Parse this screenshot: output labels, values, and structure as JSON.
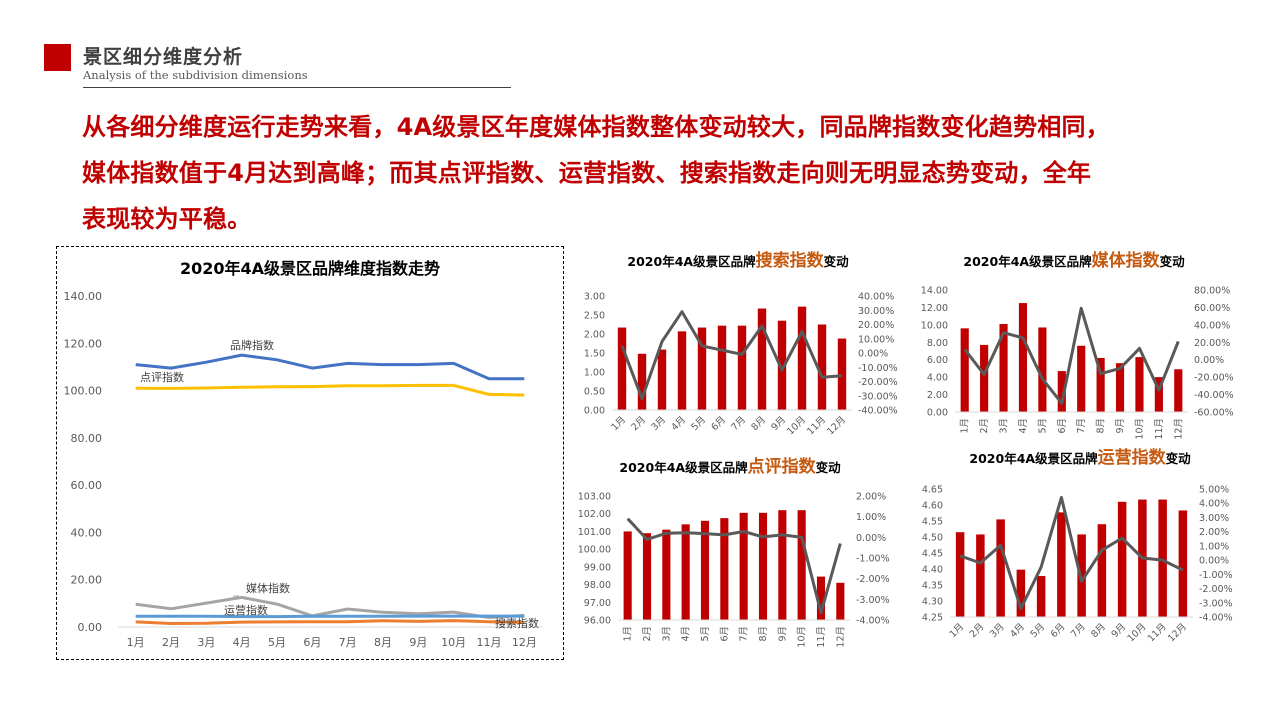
{
  "header": {
    "title": "景区细分维度分析",
    "subtitle": "Analysis of the subdivision dimensions"
  },
  "summary": {
    "lines": [
      "从各细分维度运行走势来看，4A级景区年度媒体指数整体变动较大，同品牌指数变化趋势相同，",
      "媒体指数值于4月达到高峰；而其点评指数、运营指数、搜索指数走向则无明显态势变动，全年",
      "表现较为平稳。"
    ]
  },
  "colors": {
    "accent": "#c00000",
    "highlight": "#c55a11",
    "bar": "#c00000",
    "line": "#595959"
  },
  "chart_data": [
    {
      "type": "line",
      "title": "2020年4A级景区品牌维度指数走势",
      "categories": [
        "1月",
        "2月",
        "3月",
        "4月",
        "5月",
        "6月",
        "7月",
        "8月",
        "9月",
        "10月",
        "11月",
        "12月"
      ],
      "ylim": [
        0,
        140
      ],
      "yticks": [
        "0.00",
        "20.00",
        "40.00",
        "60.00",
        "80.00",
        "100.00",
        "120.00",
        "140.00"
      ],
      "grid": false,
      "series": [
        {
          "name": "品牌指数",
          "color": "#4472c4",
          "values": [
            111,
            109.5,
            112,
            115,
            113,
            109.5,
            111.5,
            111,
            111,
            111.5,
            105,
            105
          ]
        },
        {
          "name": "点评指数",
          "color": "#ffc000",
          "values": [
            101,
            100.9,
            101.1,
            101.4,
            101.6,
            101.7,
            102.0,
            102.0,
            102.2,
            102.2,
            98.4,
            98.1
          ]
        },
        {
          "name": "媒体指数",
          "color": "#a5a5a5",
          "values": [
            9.6,
            7.7,
            10.1,
            12.5,
            9.7,
            4.7,
            7.6,
            6.2,
            5.6,
            6.3,
            4.0,
            4.9
          ]
        },
        {
          "name": "运营指数",
          "color": "#5b9bd5",
          "values": [
            4.51,
            4.51,
            4.55,
            4.4,
            4.38,
            4.58,
            4.51,
            4.54,
            4.61,
            4.62,
            4.62,
            4.58
          ]
        },
        {
          "name": "搜索指数",
          "color": "#ed7d31",
          "values": [
            2.17,
            1.48,
            1.59,
            2.07,
            2.17,
            2.22,
            2.22,
            2.67,
            2.35,
            2.72,
            2.25,
            1.88
          ]
        }
      ]
    },
    {
      "type": "bar+line",
      "title_prefix": "2020年4A级景区品牌",
      "title_highlight": "搜索指数",
      "title_suffix": "变动",
      "categories": [
        "1月",
        "2月",
        "3月",
        "4月",
        "5月",
        "6月",
        "7月",
        "8月",
        "9月",
        "10月",
        "11月",
        "12月"
      ],
      "bar_values": [
        2.17,
        1.48,
        1.59,
        2.07,
        2.17,
        2.22,
        2.22,
        2.67,
        2.35,
        2.72,
        2.25,
        1.88
      ],
      "line_values": [
        5,
        -32,
        8,
        29,
        5,
        2,
        -1,
        19,
        -12,
        15,
        -17,
        -16
      ],
      "ylim": [
        0,
        3
      ],
      "yticks": [
        "0.00",
        "0.50",
        "1.00",
        "1.50",
        "2.00",
        "2.50",
        "3.00"
      ],
      "y2lim": [
        -40,
        40
      ],
      "y2ticks": [
        "-40.00%",
        "-30.00%",
        "-20.00%",
        "-10.00%",
        "0.00%",
        "10.00%",
        "20.00%",
        "30.00%",
        "40.00%"
      ],
      "xlabel_rotation": "diagonal"
    },
    {
      "type": "bar+line",
      "title_prefix": "2020年4A级景区品牌",
      "title_highlight": "媒体指数",
      "title_suffix": "变动",
      "categories": [
        "1月",
        "2月",
        "3月",
        "4月",
        "5月",
        "6月",
        "7月",
        "8月",
        "9月",
        "10月",
        "11月",
        "12月"
      ],
      "bar_values": [
        9.6,
        7.7,
        10.1,
        12.5,
        9.7,
        4.7,
        7.6,
        6.2,
        5.6,
        6.3,
        4.0,
        4.9
      ],
      "line_values": [
        12,
        -17,
        31,
        25,
        -22,
        -50,
        59,
        -16,
        -10,
        13,
        -35,
        21
      ],
      "ylim": [
        0,
        14
      ],
      "yticks": [
        "0.00",
        "2.00",
        "4.00",
        "6.00",
        "8.00",
        "10.00",
        "12.00",
        "14.00"
      ],
      "y2lim": [
        -60,
        80
      ],
      "y2ticks": [
        "-60.00%",
        "-40.00%",
        "-20.00%",
        "0.00%",
        "20.00%",
        "40.00%",
        "60.00%",
        "80.00%"
      ],
      "xlabel_rotation": "vertical"
    },
    {
      "type": "bar+line",
      "title_prefix": "2020年4A级景区品牌",
      "title_highlight": "点评指数",
      "title_suffix": "变动",
      "categories": [
        "1月",
        "2月",
        "3月",
        "4月",
        "5月",
        "6月",
        "7月",
        "8月",
        "9月",
        "10月",
        "11月",
        "12月"
      ],
      "bar_values": [
        101.0,
        100.9,
        101.1,
        101.4,
        101.6,
        101.75,
        102.05,
        102.05,
        102.2,
        102.2,
        98.45,
        98.1
      ],
      "line_values": [
        0.9,
        -0.1,
        0.2,
        0.22,
        0.18,
        0.12,
        0.28,
        0.02,
        0.12,
        0.0,
        -3.65,
        -0.3
      ],
      "ylim": [
        96,
        103
      ],
      "yticks": [
        "96.00",
        "97.00",
        "98.00",
        "99.00",
        "100.00",
        "101.00",
        "102.00",
        "103.00"
      ],
      "y2lim": [
        -4,
        2
      ],
      "y2ticks": [
        "-4.00%",
        "-3.00%",
        "-2.00%",
        "-1.00%",
        "0.00%",
        "1.00%",
        "2.00%"
      ],
      "xlabel_rotation": "vertical"
    },
    {
      "type": "bar+line",
      "title_prefix": "2020年4A级景区品牌",
      "title_highlight": "运营指数",
      "title_suffix": "变动",
      "categories": [
        "1月",
        "2月",
        "3月",
        "4月",
        "5月",
        "6月",
        "7月",
        "8月",
        "9月",
        "10月",
        "11月",
        "12月"
      ],
      "bar_values": [
        4.515,
        4.508,
        4.555,
        4.398,
        4.378,
        4.577,
        4.508,
        4.54,
        4.61,
        4.617,
        4.617,
        4.583
      ],
      "line_values": [
        0.3,
        -0.2,
        1.05,
        -3.4,
        -0.5,
        4.4,
        -1.5,
        0.7,
        1.55,
        0.15,
        0.0,
        -0.7
      ],
      "ylim": [
        4.25,
        4.65
      ],
      "yticks": [
        "4.25",
        "4.30",
        "4.35",
        "4.40",
        "4.45",
        "4.50",
        "4.55",
        "4.60",
        "4.65"
      ],
      "y2lim": [
        -4,
        5
      ],
      "y2ticks": [
        "-4.00%",
        "-3.00%",
        "-2.00%",
        "-1.00%",
        "0.00%",
        "1.00%",
        "2.00%",
        "3.00%",
        "4.00%",
        "5.00%"
      ],
      "xlabel_rotation": "diagonal"
    }
  ]
}
